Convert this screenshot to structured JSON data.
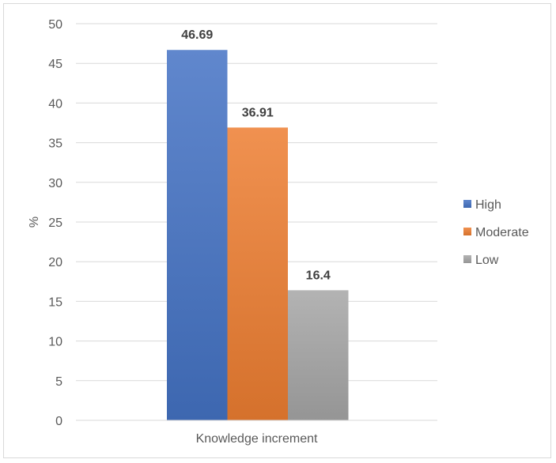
{
  "chart_data": {
    "type": "bar",
    "categories": [
      "Knowledge increment"
    ],
    "series": [
      {
        "name": "High",
        "values": [
          46.69
        ],
        "color": "#4472c4"
      },
      {
        "name": "Moderate",
        "values": [
          36.91
        ],
        "color": "#ed7d31"
      },
      {
        "name": "Low",
        "values": [
          16.4
        ],
        "color": "#a5a5a5"
      }
    ],
    "data_labels": [
      "46.69",
      "36.91",
      "16.4"
    ],
    "title": "",
    "xlabel": "",
    "ylabel": "%",
    "ylim": [
      0,
      50
    ],
    "yticks": [
      0,
      5,
      10,
      15,
      20,
      25,
      30,
      35,
      40,
      45,
      50
    ],
    "grid": true,
    "legend_position": "right"
  }
}
